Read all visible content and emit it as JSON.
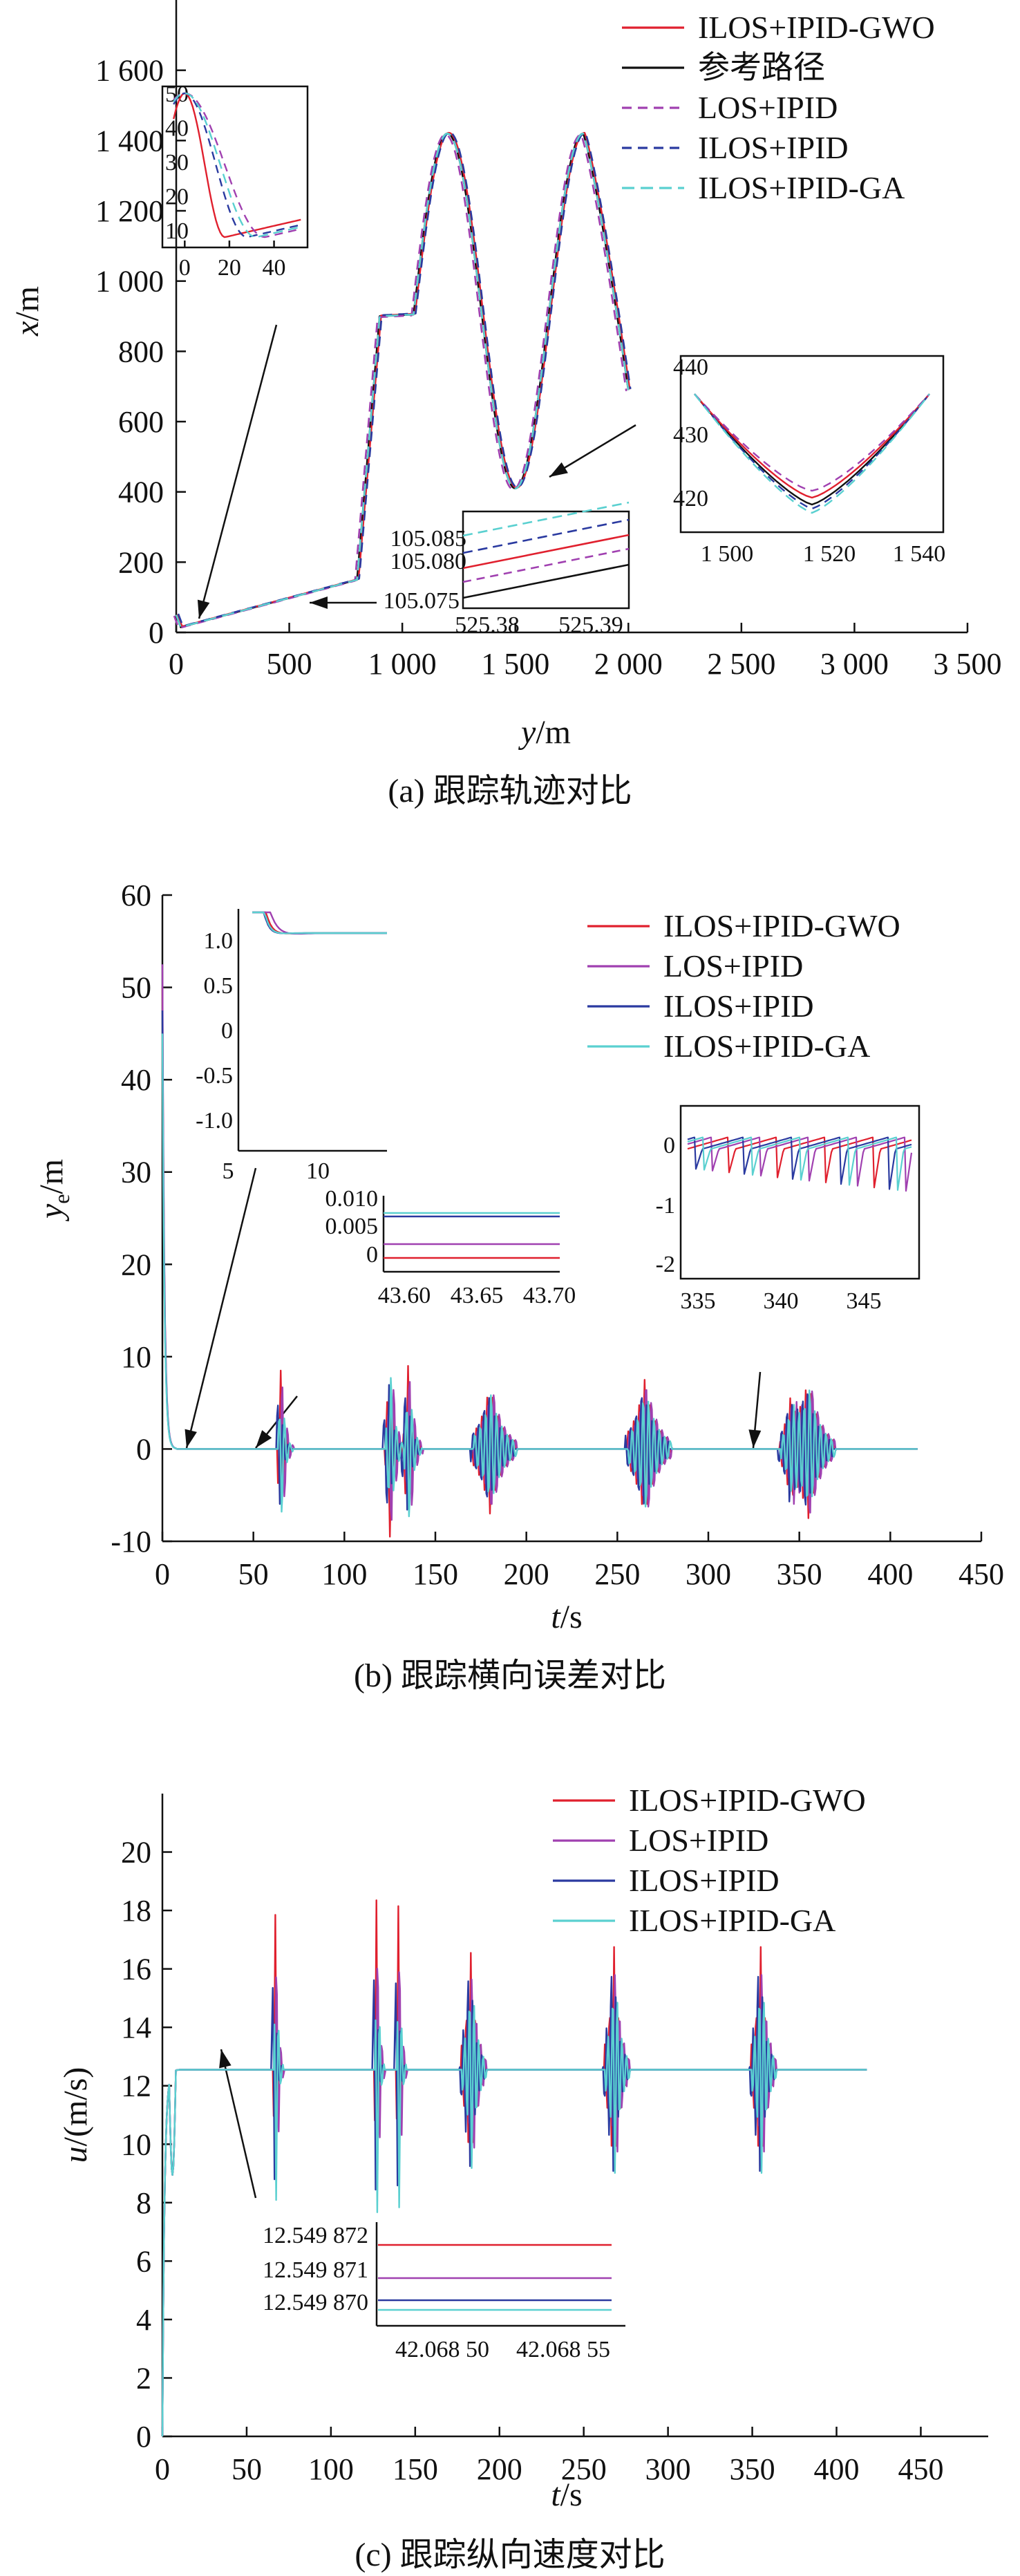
{
  "colors": {
    "gwo": "#e0202e",
    "ref": "#111111",
    "los": "#a040b0",
    "ilos": "#2a3aa0",
    "ga": "#5ad0d0"
  },
  "chart_data": [
    {
      "type": "line",
      "caption": "(a) 跟踪轨迹对比",
      "xlabel_var": "y",
      "xlabel_unit": "/m",
      "ylabel_var": "x",
      "ylabel_unit": "/m",
      "xlim": [
        0,
        3500
      ],
      "ylim": [
        0,
        1800
      ],
      "xticks": [
        0,
        500,
        1000,
        1500,
        2000,
        2500,
        3000,
        3500
      ],
      "xtick_labels": [
        "0",
        "500",
        "1 000",
        "1 500",
        "2 000",
        "2 500",
        "3 000",
        "3 500"
      ],
      "yticks": [
        0,
        200,
        400,
        600,
        800,
        1000,
        1200,
        1400,
        1600
      ],
      "ytick_labels": [
        "0",
        "200",
        "400",
        "600",
        "800",
        "1 000",
        "1 200",
        "1 400",
        "1 600"
      ],
      "legend": [
        "ILOS+IPID-GWO",
        "参考路径",
        "LOS+IPID",
        "ILOS+IPID",
        "ILOS+IPID-GA"
      ],
      "series": [
        {
          "name": "参考路径",
          "key": "ref",
          "points": [
            [
              0,
              50
            ],
            [
              20,
              15
            ],
            [
              800,
              150
            ],
            [
              900,
              900
            ],
            [
              1050,
              905
            ],
            [
              1200,
              1420
            ],
            [
              1500,
              410
            ],
            [
              1800,
              1420
            ],
            [
              2000,
              690
            ]
          ]
        }
      ],
      "insets": [
        {
          "xticks": [
            0,
            20,
            40
          ],
          "yticks": [
            10,
            20,
            30,
            40,
            50
          ],
          "xlim": [
            -10,
            55
          ],
          "ylim": [
            5,
            52
          ]
        },
        {
          "xtick_labels": [
            "525.38",
            "525.39"
          ],
          "ytick_labels": [
            "105.085",
            "105.080",
            "105.075"
          ]
        },
        {
          "xtick_labels": [
            "1 500",
            "1 520",
            "1 540"
          ],
          "ytick_labels": [
            "440",
            "430",
            "420"
          ]
        }
      ]
    },
    {
      "type": "line",
      "caption": "(b) 跟踪横向误差对比",
      "xlabel_var": "t",
      "xlabel_unit": "/s",
      "ylabel_var": "y",
      "ylabel_sub": "e",
      "ylabel_unit": "/m",
      "xlim": [
        0,
        450
      ],
      "ylim": [
        -10,
        60
      ],
      "xticks": [
        0,
        50,
        100,
        150,
        200,
        250,
        300,
        350,
        400,
        450
      ],
      "yticks": [
        -10,
        0,
        10,
        20,
        30,
        40,
        50,
        60
      ],
      "legend": [
        "ILOS+IPID-GWO",
        "LOS+IPID",
        "ILOS+IPID",
        "ILOS+IPID-GA"
      ],
      "insets": [
        {
          "xticks": [
            "5",
            "10"
          ],
          "ytick_labels": [
            "1.0",
            "0.5",
            "0",
            "-0.5",
            "-1.0"
          ]
        },
        {
          "xtick_labels": [
            "43.60",
            "43.65",
            "43.70"
          ],
          "ytick_labels": [
            "0.010",
            "0.005",
            "0"
          ]
        },
        {
          "xtick_labels": [
            "335",
            "340",
            "345"
          ],
          "ytick_labels": [
            "0",
            "-1",
            "-2"
          ]
        }
      ]
    },
    {
      "type": "line",
      "caption": "(c) 跟踪纵向速度对比",
      "xlabel_var": "t",
      "xlabel_unit": "/s",
      "ylabel_var": "u",
      "ylabel_unit": "/(m/s)",
      "xlim": [
        0,
        490
      ],
      "ylim": [
        0,
        22
      ],
      "xticks": [
        0,
        50,
        100,
        150,
        200,
        250,
        300,
        350,
        400,
        450
      ],
      "yticks": [
        0,
        2,
        4,
        6,
        8,
        10,
        12,
        14,
        16,
        18,
        20
      ],
      "legend": [
        "ILOS+IPID-GWO",
        "LOS+IPID",
        "ILOS+IPID",
        "ILOS+IPID-GA"
      ],
      "steady_value": 12.55,
      "insets": [
        {
          "xtick_labels": [
            "42.068 50",
            "42.068 55"
          ],
          "ytick_labels": [
            "12.549 872",
            "12.549 871",
            "12.549 870"
          ]
        }
      ]
    }
  ]
}
